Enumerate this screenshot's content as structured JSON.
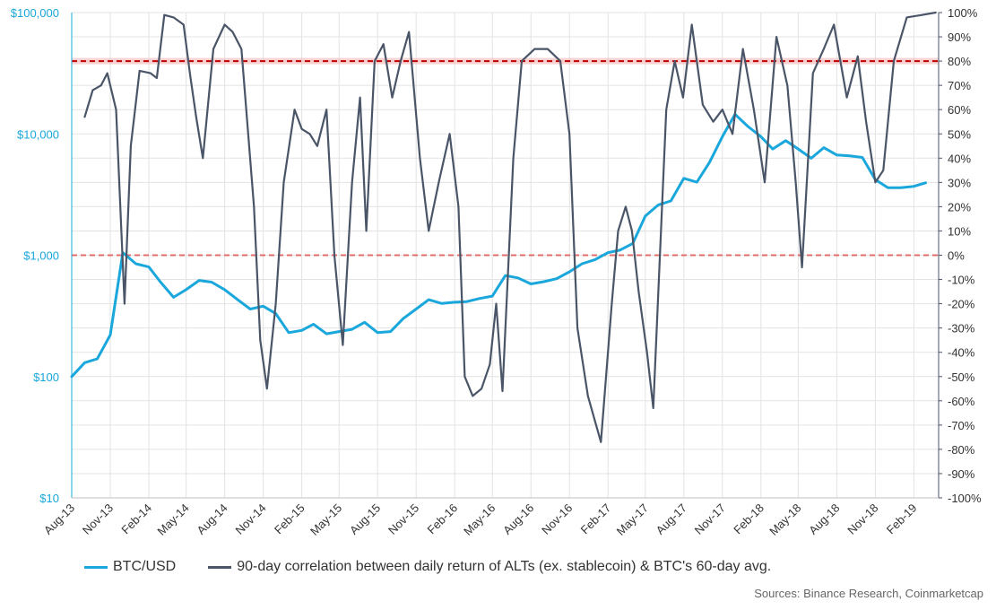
{
  "chart_data": {
    "type": "line",
    "title": "",
    "source": "Sources: Binance Research, Coinmarketcap",
    "left_axis": {
      "scale": "log",
      "range": [
        10,
        100000
      ],
      "ticks": [
        "$100,000",
        "$10,000",
        "$1,000",
        "$100",
        "$10"
      ],
      "tick_values": [
        100000,
        10000,
        1000,
        100,
        10
      ],
      "color": "#1aa7dc"
    },
    "right_axis": {
      "range": [
        -100,
        100
      ],
      "ticks": [
        "100%",
        "90%",
        "80%",
        "70%",
        "60%",
        "50%",
        "40%",
        "30%",
        "20%",
        "10%",
        "0%",
        "-10%",
        "-20%",
        "-30%",
        "-40%",
        "-50%",
        "-60%",
        "-70%",
        "-80%",
        "-90%",
        "-100%"
      ],
      "tick_values": [
        100,
        90,
        80,
        70,
        60,
        50,
        40,
        30,
        20,
        10,
        0,
        -10,
        -20,
        -30,
        -40,
        -50,
        -60,
        -70,
        -80,
        -90,
        -100
      ]
    },
    "x_axis": {
      "range": [
        "2013-08",
        "2019-04"
      ],
      "ticks": [
        "Aug-13",
        "Nov-13",
        "Feb-14",
        "May-14",
        "Aug-14",
        "Nov-14",
        "Feb-15",
        "May-15",
        "Aug-15",
        "Nov-15",
        "Feb-16",
        "May-16",
        "Aug-16",
        "Nov-16",
        "Feb-17",
        "May-17",
        "Aug-17",
        "Nov-17",
        "Feb-18",
        "May-18",
        "Aug-18",
        "Nov-18",
        "Feb-19"
      ]
    },
    "grid": true,
    "reference_lines": [
      {
        "axis": "right",
        "value": 80,
        "style": "dashed",
        "color": "#c00000"
      },
      {
        "axis": "right",
        "value": 0,
        "style": "dashed",
        "color": "#e36c6c"
      }
    ],
    "series": [
      {
        "name": "BTC/USD",
        "axis": "left",
        "color": "#1aa7dc",
        "points": [
          [
            "2013-08",
            100
          ],
          [
            "2013-09",
            130
          ],
          [
            "2013-10",
            140
          ],
          [
            "2013-11",
            220
          ],
          [
            "2013-12",
            1050
          ],
          [
            "2014-01",
            850
          ],
          [
            "2014-02",
            800
          ],
          [
            "2014-03",
            600
          ],
          [
            "2014-04",
            450
          ],
          [
            "2014-05",
            520
          ],
          [
            "2014-06",
            620
          ],
          [
            "2014-07",
            600
          ],
          [
            "2014-08",
            520
          ],
          [
            "2014-09",
            430
          ],
          [
            "2014-10",
            360
          ],
          [
            "2014-11",
            380
          ],
          [
            "2014-12",
            330
          ],
          [
            "2015-01",
            230
          ],
          [
            "2015-02",
            240
          ],
          [
            "2015-03",
            270
          ],
          [
            "2015-04",
            225
          ],
          [
            "2015-05",
            235
          ],
          [
            "2015-06",
            245
          ],
          [
            "2015-07",
            280
          ],
          [
            "2015-08",
            230
          ],
          [
            "2015-09",
            235
          ],
          [
            "2015-10",
            300
          ],
          [
            "2015-11",
            360
          ],
          [
            "2015-12",
            430
          ],
          [
            "2016-01",
            400
          ],
          [
            "2016-02",
            410
          ],
          [
            "2016-03",
            415
          ],
          [
            "2016-04",
            440
          ],
          [
            "2016-05",
            460
          ],
          [
            "2016-06",
            680
          ],
          [
            "2016-07",
            650
          ],
          [
            "2016-08",
            580
          ],
          [
            "2016-09",
            605
          ],
          [
            "2016-10",
            640
          ],
          [
            "2016-11",
            730
          ],
          [
            "2016-12",
            850
          ],
          [
            "2017-01",
            920
          ],
          [
            "2017-02",
            1050
          ],
          [
            "2017-03",
            1100
          ],
          [
            "2017-04",
            1250
          ],
          [
            "2017-05",
            2100
          ],
          [
            "2017-06",
            2600
          ],
          [
            "2017-07",
            2800
          ],
          [
            "2017-08",
            4300
          ],
          [
            "2017-09",
            4000
          ],
          [
            "2017-10",
            5800
          ],
          [
            "2017-11",
            9500
          ],
          [
            "2017-12",
            14500
          ],
          [
            "2018-01",
            11500
          ],
          [
            "2018-02",
            9500
          ],
          [
            "2018-03",
            7500
          ],
          [
            "2018-04",
            8800
          ],
          [
            "2018-05",
            7500
          ],
          [
            "2018-06",
            6300
          ],
          [
            "2018-07",
            7700
          ],
          [
            "2018-08",
            6700
          ],
          [
            "2018-09",
            6600
          ],
          [
            "2018-10",
            6400
          ],
          [
            "2018-11",
            4200
          ],
          [
            "2018-12",
            3600
          ],
          [
            "2019-01",
            3600
          ],
          [
            "2019-02",
            3700
          ],
          [
            "2019-03",
            3950
          ]
        ]
      },
      {
        "name": "90-day correlation between daily return of ALTs (ex. stablecoin) & BTC's 60-day avg.",
        "axis": "right",
        "color": "#4a5568",
        "points": [
          [
            "2013-09",
            57
          ],
          [
            "2013-09-20",
            68
          ],
          [
            "2013-10-10",
            70
          ],
          [
            "2013-10-25",
            75
          ],
          [
            "2013-11-15",
            60
          ],
          [
            "2013-12-05",
            -20
          ],
          [
            "2013-12-20",
            45
          ],
          [
            "2014-01-10",
            76
          ],
          [
            "2014-02-05",
            75
          ],
          [
            "2014-02-20",
            73
          ],
          [
            "2014-03-10",
            99
          ],
          [
            "2014-04-01",
            98
          ],
          [
            "2014-04-25",
            95
          ],
          [
            "2014-05-10",
            75
          ],
          [
            "2014-05-25",
            57
          ],
          [
            "2014-06-10",
            40
          ],
          [
            "2014-07-05",
            85
          ],
          [
            "2014-08-01",
            95
          ],
          [
            "2014-08-20",
            92
          ],
          [
            "2014-09-10",
            85
          ],
          [
            "2014-10-10",
            20
          ],
          [
            "2014-10-25",
            -35
          ],
          [
            "2014-11-10",
            -55
          ],
          [
            "2014-12-01",
            -20
          ],
          [
            "2014-12-20",
            30
          ],
          [
            "2015-01-15",
            60
          ],
          [
            "2015-02-01",
            52
          ],
          [
            "2015-02-20",
            50
          ],
          [
            "2015-03-10",
            45
          ],
          [
            "2015-04-01",
            60
          ],
          [
            "2015-04-20",
            0
          ],
          [
            "2015-05-10",
            -37
          ],
          [
            "2015-06-01",
            30
          ],
          [
            "2015-06-20",
            65
          ],
          [
            "2015-07-05",
            10
          ],
          [
            "2015-07-25",
            80
          ],
          [
            "2015-08-15",
            87
          ],
          [
            "2015-09-05",
            65
          ],
          [
            "2015-09-25",
            80
          ],
          [
            "2015-10-15",
            92
          ],
          [
            "2015-11-10",
            40
          ],
          [
            "2015-12-01",
            10
          ],
          [
            "2015-12-25",
            30
          ],
          [
            "2016-01-20",
            50
          ],
          [
            "2016-02-10",
            20
          ],
          [
            "2016-02-25",
            -50
          ],
          [
            "2016-03-15",
            -58
          ],
          [
            "2016-04-05",
            -55
          ],
          [
            "2016-04-25",
            -45
          ],
          [
            "2016-05-10",
            -20
          ],
          [
            "2016-05-25",
            -56
          ],
          [
            "2016-06-20",
            40
          ],
          [
            "2016-07-10",
            80
          ],
          [
            "2016-08-10",
            85
          ],
          [
            "2016-09-10",
            85
          ],
          [
            "2016-10-10",
            80
          ],
          [
            "2016-11-01",
            50
          ],
          [
            "2016-11-20",
            -30
          ],
          [
            "2016-12-15",
            -58
          ],
          [
            "2017-01-15",
            -77
          ],
          [
            "2017-02-10",
            -20
          ],
          [
            "2017-02-25",
            10
          ],
          [
            "2017-03-15",
            20
          ],
          [
            "2017-03-30",
            10
          ],
          [
            "2017-04-15",
            -15
          ],
          [
            "2017-05-05",
            -40
          ],
          [
            "2017-05-20",
            -63
          ],
          [
            "2017-06-20",
            60
          ],
          [
            "2017-07-10",
            80
          ],
          [
            "2017-07-30",
            65
          ],
          [
            "2017-08-20",
            95
          ],
          [
            "2017-09-15",
            62
          ],
          [
            "2017-10-10",
            55
          ],
          [
            "2017-11-01",
            60
          ],
          [
            "2017-11-25",
            50
          ],
          [
            "2017-12-20",
            85
          ],
          [
            "2018-01-15",
            60
          ],
          [
            "2018-02-10",
            30
          ],
          [
            "2018-03-10",
            90
          ],
          [
            "2018-04-05",
            70
          ],
          [
            "2018-04-25",
            30
          ],
          [
            "2018-05-10",
            -5
          ],
          [
            "2018-06-05",
            75
          ],
          [
            "2018-07-01",
            85
          ],
          [
            "2018-07-25",
            95
          ],
          [
            "2018-08-25",
            65
          ],
          [
            "2018-09-20",
            82
          ],
          [
            "2018-10-10",
            55
          ],
          [
            "2018-11-01",
            30
          ],
          [
            "2018-11-20",
            35
          ],
          [
            "2018-12-15",
            80
          ],
          [
            "2019-01-15",
            98
          ],
          [
            "2019-02-20",
            99
          ],
          [
            "2019-03-25",
            100
          ]
        ]
      }
    ]
  }
}
